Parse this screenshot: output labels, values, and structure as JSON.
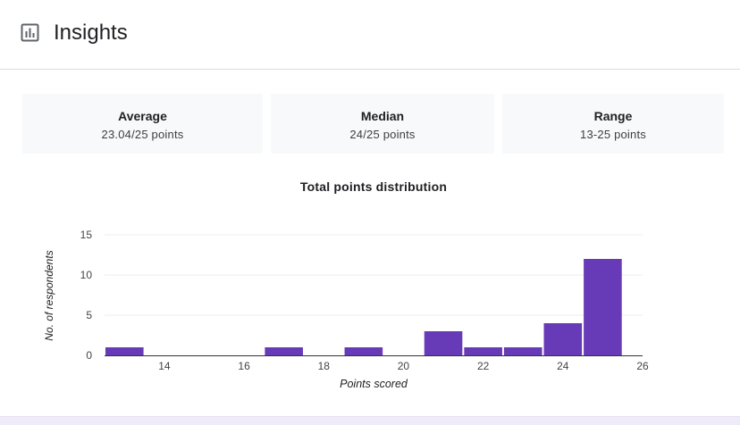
{
  "header": {
    "title": "Insights",
    "icon": "bar-chart-icon"
  },
  "stats": [
    {
      "label": "Average",
      "value": "23.04/25 points"
    },
    {
      "label": "Median",
      "value": "24/25 points"
    },
    {
      "label": "Range",
      "value": "13-25 points"
    }
  ],
  "chart_data": {
    "type": "bar",
    "title": "Total points distribution",
    "xlabel": "Points scored",
    "ylabel": "No. of respondents",
    "x": [
      13,
      17,
      19,
      21,
      22,
      23,
      24,
      25
    ],
    "values": [
      1,
      1,
      1,
      3,
      1,
      1,
      4,
      12
    ],
    "xlim": [
      12.5,
      26
    ],
    "ylim": [
      0,
      15
    ],
    "xticks": [
      14,
      16,
      18,
      20,
      22,
      24,
      26
    ],
    "yticks": [
      0,
      5,
      10,
      15
    ],
    "grid": true,
    "bar_color": "#673ab7"
  }
}
